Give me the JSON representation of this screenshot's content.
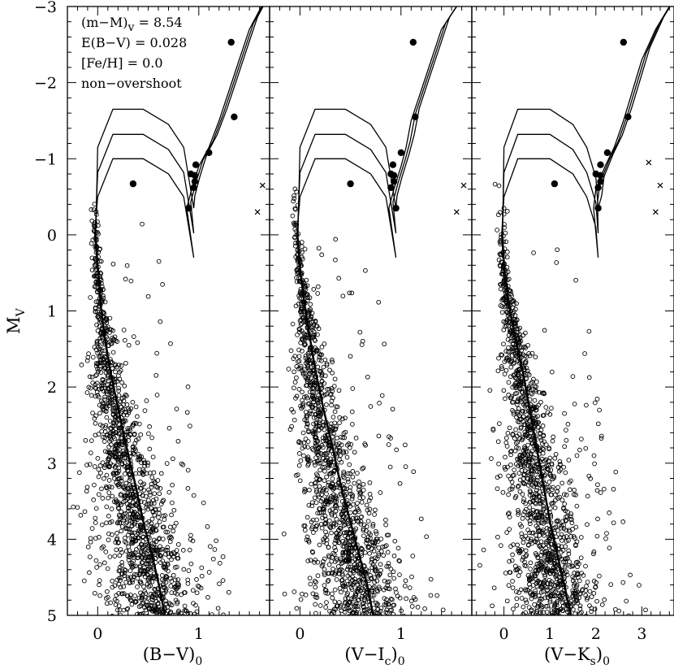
{
  "chart_data": {
    "type": "scatter",
    "title": "",
    "ylabel": "M",
    "ylabel_sub": "V",
    "ylim": [
      5,
      -3
    ],
    "yticks": [
      -3,
      -2,
      -1,
      0,
      1,
      2,
      3,
      4,
      5
    ],
    "ytick_labels": [
      "−3",
      "−2",
      "−1",
      "0",
      "1",
      "2",
      "3",
      "4",
      "5"
    ],
    "annotations": [
      "(m−M)",
      "v",
      " = 8.54",
      "E(B−V) = 0.028",
      "[Fe/H] = 0.0",
      "non−overshoot"
    ],
    "panels": [
      {
        "xlabel_main": "(B−V)",
        "xlabel_sub": "0",
        "xlim": [
          -0.3,
          1.7
        ],
        "xticks": [
          0,
          1
        ],
        "xtick_labels": [
          "0",
          "1"
        ],
        "minor": 0.1,
        "ms_x": [
          -0.05,
          -0.03,
          0.0,
          0.03,
          0.07,
          0.12,
          0.2,
          0.28,
          0.37,
          0.45,
          0.53,
          0.6,
          0.66
        ],
        "ms_y": [
          -0.6,
          0.0,
          0.5,
          1.0,
          1.4,
          1.8,
          2.3,
          2.8,
          3.3,
          3.8,
          4.2,
          4.6,
          5.0
        ],
        "iso_to": [
          [
            0.95,
            0.3
          ],
          [
            0.9,
            -0.1
          ],
          [
            0.85,
            -0.5
          ],
          [
            0.7,
            -0.8
          ],
          [
            0.45,
            -1.0
          ],
          [
            0.15,
            -1.0
          ],
          [
            0.0,
            -0.5
          ]
        ],
        "rgb_x": [
          0.88,
          0.93,
          1.0,
          1.1,
          1.2,
          1.3,
          1.4,
          1.5,
          1.62
        ],
        "rgb_y": [
          -0.35,
          -0.6,
          -0.9,
          -1.15,
          -1.5,
          -1.9,
          -2.3,
          -2.7,
          -3.0
        ],
        "giants": [
          [
            1.32,
            -2.53
          ],
          [
            1.35,
            -1.55
          ],
          [
            1.1,
            -1.08
          ],
          [
            0.97,
            -0.92
          ],
          [
            0.92,
            -0.8
          ],
          [
            0.96,
            -0.78
          ],
          [
            0.96,
            -0.7
          ],
          [
            0.95,
            -0.62
          ],
          [
            0.9,
            -0.35
          ],
          [
            0.35,
            -0.67
          ]
        ],
        "crosses": [
          [
            1.63,
            -0.65
          ],
          [
            1.58,
            -0.3
          ]
        ]
      },
      {
        "xlabel_main": "(V−I",
        "xlabel_csub": "c",
        "xlabel_close": ")",
        "xlabel_sub": "0",
        "xlim": [
          -0.3,
          1.7
        ],
        "xticks": [
          0,
          1
        ],
        "xtick_labels": [
          "0",
          "1"
        ],
        "minor": 0.1,
        "ms_x": [
          -0.05,
          -0.03,
          0.0,
          0.05,
          0.1,
          0.15,
          0.23,
          0.32,
          0.4,
          0.5,
          0.58,
          0.66,
          0.72
        ],
        "ms_y": [
          -0.6,
          0.0,
          0.5,
          1.0,
          1.4,
          1.8,
          2.3,
          2.8,
          3.3,
          3.8,
          4.2,
          4.6,
          5.0
        ],
        "iso_to": [
          [
            0.95,
            0.3
          ],
          [
            0.9,
            -0.1
          ],
          [
            0.85,
            -0.5
          ],
          [
            0.7,
            -0.8
          ],
          [
            0.45,
            -1.0
          ],
          [
            0.15,
            -1.0
          ],
          [
            0.0,
            -0.5
          ]
        ],
        "rgb_x": [
          0.88,
          0.93,
          1.0,
          1.05,
          1.1,
          1.2,
          1.3,
          1.4,
          1.55
        ],
        "rgb_y": [
          -0.35,
          -0.6,
          -0.9,
          -1.15,
          -1.5,
          -1.9,
          -2.3,
          -2.7,
          -3.0
        ],
        "giants": [
          [
            1.12,
            -2.53
          ],
          [
            1.14,
            -1.55
          ],
          [
            1.0,
            -1.08
          ],
          [
            0.92,
            -0.92
          ],
          [
            0.9,
            -0.8
          ],
          [
            0.93,
            -0.78
          ],
          [
            0.93,
            -0.7
          ],
          [
            0.9,
            -0.62
          ],
          [
            0.95,
            -0.35
          ],
          [
            0.5,
            -0.67
          ]
        ],
        "crosses": [
          [
            1.62,
            -0.65
          ],
          [
            1.55,
            -0.3
          ]
        ]
      },
      {
        "xlabel_main": "(V−K",
        "xlabel_csub": "s",
        "xlabel_close": ")",
        "xlabel_sub": "0",
        "xlim": [
          -0.7,
          3.7
        ],
        "xticks": [
          0,
          1,
          2,
          3
        ],
        "xtick_labels": [
          "0",
          "1",
          "2",
          "3"
        ],
        "minor": 0.2,
        "ms_x": [
          -0.1,
          -0.05,
          0.0,
          0.12,
          0.25,
          0.4,
          0.55,
          0.7,
          0.85,
          1.0,
          1.15,
          1.3,
          1.45
        ],
        "ms_y": [
          -0.6,
          0.0,
          0.5,
          1.0,
          1.4,
          1.8,
          2.3,
          2.8,
          3.3,
          3.8,
          4.2,
          4.6,
          5.0
        ],
        "iso_to": [
          [
            2.05,
            0.3
          ],
          [
            2.0,
            -0.1
          ],
          [
            1.8,
            -0.5
          ],
          [
            1.5,
            -0.8
          ],
          [
            1.0,
            -1.0
          ],
          [
            0.3,
            -1.0
          ],
          [
            0.0,
            -0.5
          ]
        ],
        "rgb_x": [
          1.95,
          2.0,
          2.2,
          2.4,
          2.6,
          2.8,
          3.0,
          3.3,
          3.6
        ],
        "rgb_y": [
          -0.35,
          -0.6,
          -0.9,
          -1.15,
          -1.5,
          -1.9,
          -2.3,
          -2.7,
          -3.0
        ],
        "giants": [
          [
            2.6,
            -2.53
          ],
          [
            2.7,
            -1.55
          ],
          [
            2.25,
            -1.08
          ],
          [
            2.1,
            -0.92
          ],
          [
            2.0,
            -0.8
          ],
          [
            2.1,
            -0.78
          ],
          [
            2.1,
            -0.7
          ],
          [
            2.05,
            -0.62
          ],
          [
            2.05,
            -0.35
          ],
          [
            1.1,
            -0.67
          ]
        ],
        "crosses": [
          [
            3.4,
            -0.65
          ],
          [
            3.3,
            -0.3
          ],
          [
            3.15,
            -0.95
          ]
        ]
      }
    ]
  }
}
